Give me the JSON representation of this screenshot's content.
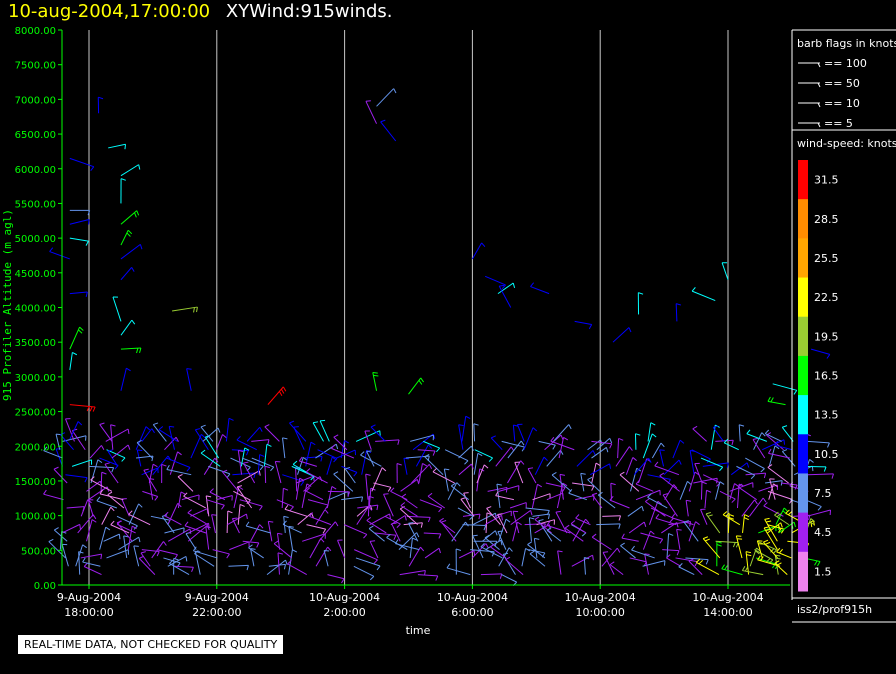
{
  "header": {
    "datetime": "10-aug-2004,17:00:00",
    "plot_title": "XYWind:915winds."
  },
  "footer": {
    "qc_notice": "REAL-TIME DATA, NOT CHECKED FOR QUALITY"
  },
  "legend": {
    "barb_title": "barb flags in knots",
    "barb_entries": [
      "== 100",
      "== 50",
      "== 10",
      "== 5"
    ],
    "speed_title": "wind-speed: knots",
    "source": "iss2/prof915h"
  },
  "colors": {
    "title_time": "#ffff00",
    "axis_text": "#00ff00",
    "axis_line": "#00ff00",
    "gridline": "#c8c8c8",
    "legend_border": "#ffffff"
  },
  "chart_data": {
    "type": "scatter",
    "title": "XYWind:915winds.",
    "xlabel": "time",
    "ylabel": "915 Profiler Altitude (m agl)",
    "ylim": [
      0,
      8000
    ],
    "xlim_hours": [
      17.0,
      41.0
    ],
    "y_ticks": [
      "0.00",
      "500.00",
      "1000.00",
      "1500.00",
      "2000.00",
      "2500.00",
      "3000.00",
      "3500.00",
      "4000.00",
      "4500.00",
      "5000.00",
      "5500.00",
      "6000.00",
      "6500.00",
      "7000.00",
      "7500.00",
      "8000.00"
    ],
    "x_ticks": [
      {
        "hour": 18,
        "line1": "9-Aug-2004",
        "line2": "18:00:00"
      },
      {
        "hour": 22,
        "line1": "9-Aug-2004",
        "line2": "22:00:00"
      },
      {
        "hour": 26,
        "line1": "10-Aug-2004",
        "line2": "2:00:00"
      },
      {
        "hour": 30,
        "line1": "10-Aug-2004",
        "line2": "6:00:00"
      },
      {
        "hour": 34,
        "line1": "10-Aug-2004",
        "line2": "10:00:00"
      },
      {
        "hour": 38,
        "line1": "10-Aug-2004",
        "line2": "14:00:00"
      }
    ],
    "grid": "vertical",
    "color_scale": {
      "levels": [
        "1.5",
        "4.5",
        "7.5",
        "10.5",
        "13.5",
        "16.5",
        "19.5",
        "22.5",
        "25.5",
        "28.5",
        "31.5"
      ],
      "colors": [
        "#ee82ee",
        "#a020f0",
        "#6495ed",
        "#0000ff",
        "#00ffff",
        "#00ff00",
        "#9acd32",
        "#ffff00",
        "#ffa500",
        "#ff8c00",
        "#ff0000"
      ]
    },
    "profile_times_hours": [
      17.2,
      17.6,
      18.0,
      18.4,
      18.8,
      19.2,
      19.6,
      20.0,
      20.4,
      20.8,
      21.2,
      21.6,
      22.0,
      22.4,
      22.8,
      23.2,
      23.6,
      24.0,
      24.4,
      24.8,
      25.2,
      25.6,
      26.0,
      26.4,
      26.8,
      27.2,
      27.6,
      28.0,
      28.4,
      29.2,
      29.6,
      30.0,
      30.4,
      30.8,
      31.2,
      31.6,
      32.0,
      32.4,
      32.8,
      33.2,
      33.6,
      34.0,
      34.4,
      34.8,
      35.2,
      35.6,
      36.0,
      36.4,
      36.8,
      37.2,
      37.6,
      38.0,
      38.4,
      38.8,
      39.2,
      39.6,
      40.0,
      40.4
    ],
    "low_mode_top_m": 2400,
    "high_mode_top_m": 7000,
    "barbs": [
      {
        "t": 17.4,
        "alt": 2600,
        "speed": 31.5
      },
      {
        "t": 17.4,
        "alt": 2100,
        "speed": 10.5
      },
      {
        "t": 17.4,
        "alt": 3100,
        "speed": 13.5
      },
      {
        "t": 17.4,
        "alt": 3400,
        "speed": 16.5
      },
      {
        "t": 17.4,
        "alt": 4200,
        "speed": 10.5
      },
      {
        "t": 17.4,
        "alt": 4700,
        "speed": 10.5
      },
      {
        "t": 17.4,
        "alt": 5000,
        "speed": 13.5
      },
      {
        "t": 17.4,
        "alt": 5200,
        "speed": 10.5
      },
      {
        "t": 17.4,
        "alt": 5400,
        "speed": 7.5
      },
      {
        "t": 17.4,
        "alt": 6150,
        "speed": 10.5
      },
      {
        "t": 18.3,
        "alt": 6800,
        "speed": 10.5
      },
      {
        "t": 18.6,
        "alt": 6300,
        "speed": 13.5
      },
      {
        "t": 19.0,
        "alt": 5900,
        "speed": 13.5
      },
      {
        "t": 19.0,
        "alt": 5500,
        "speed": 13.5
      },
      {
        "t": 19.0,
        "alt": 5200,
        "speed": 16.5
      },
      {
        "t": 19.0,
        "alt": 4900,
        "speed": 16.5
      },
      {
        "t": 19.0,
        "alt": 4700,
        "speed": 10.5
      },
      {
        "t": 19.0,
        "alt": 4400,
        "speed": 10.5
      },
      {
        "t": 19.0,
        "alt": 3800,
        "speed": 13.5
      },
      {
        "t": 19.0,
        "alt": 3600,
        "speed": 13.5
      },
      {
        "t": 19.0,
        "alt": 3400,
        "speed": 16.5
      },
      {
        "t": 19.0,
        "alt": 2800,
        "speed": 10.5
      },
      {
        "t": 20.6,
        "alt": 3950,
        "speed": 19.5
      },
      {
        "t": 21.2,
        "alt": 2800,
        "speed": 10.5
      },
      {
        "t": 23.6,
        "alt": 2600,
        "speed": 31.5
      },
      {
        "t": 27.0,
        "alt": 6900,
        "speed": 7.5
      },
      {
        "t": 27.0,
        "alt": 6650,
        "speed": 4.5
      },
      {
        "t": 27.6,
        "alt": 6400,
        "speed": 10.5
      },
      {
        "t": 27.0,
        "alt": 2800,
        "speed": 16.5
      },
      {
        "t": 28.0,
        "alt": 2750,
        "speed": 16.5
      },
      {
        "t": 30.0,
        "alt": 4700,
        "speed": 10.5
      },
      {
        "t": 30.4,
        "alt": 4450,
        "speed": 10.5
      },
      {
        "t": 30.8,
        "alt": 4200,
        "speed": 13.5
      },
      {
        "t": 31.2,
        "alt": 4000,
        "speed": 10.5
      },
      {
        "t": 32.4,
        "alt": 4200,
        "speed": 10.5
      },
      {
        "t": 33.2,
        "alt": 3800,
        "speed": 10.5
      },
      {
        "t": 34.4,
        "alt": 3500,
        "speed": 10.5
      },
      {
        "t": 35.2,
        "alt": 3900,
        "speed": 13.5
      },
      {
        "t": 36.4,
        "alt": 3800,
        "speed": 10.5
      },
      {
        "t": 37.6,
        "alt": 4100,
        "speed": 13.5
      },
      {
        "t": 38.0,
        "alt": 4400,
        "speed": 13.5
      },
      {
        "t": 39.4,
        "alt": 2900,
        "speed": 13.5
      },
      {
        "t": 39.8,
        "alt": 2600,
        "speed": 16.5
      },
      {
        "t": 40.6,
        "alt": 3400,
        "speed": 10.5
      }
    ]
  }
}
